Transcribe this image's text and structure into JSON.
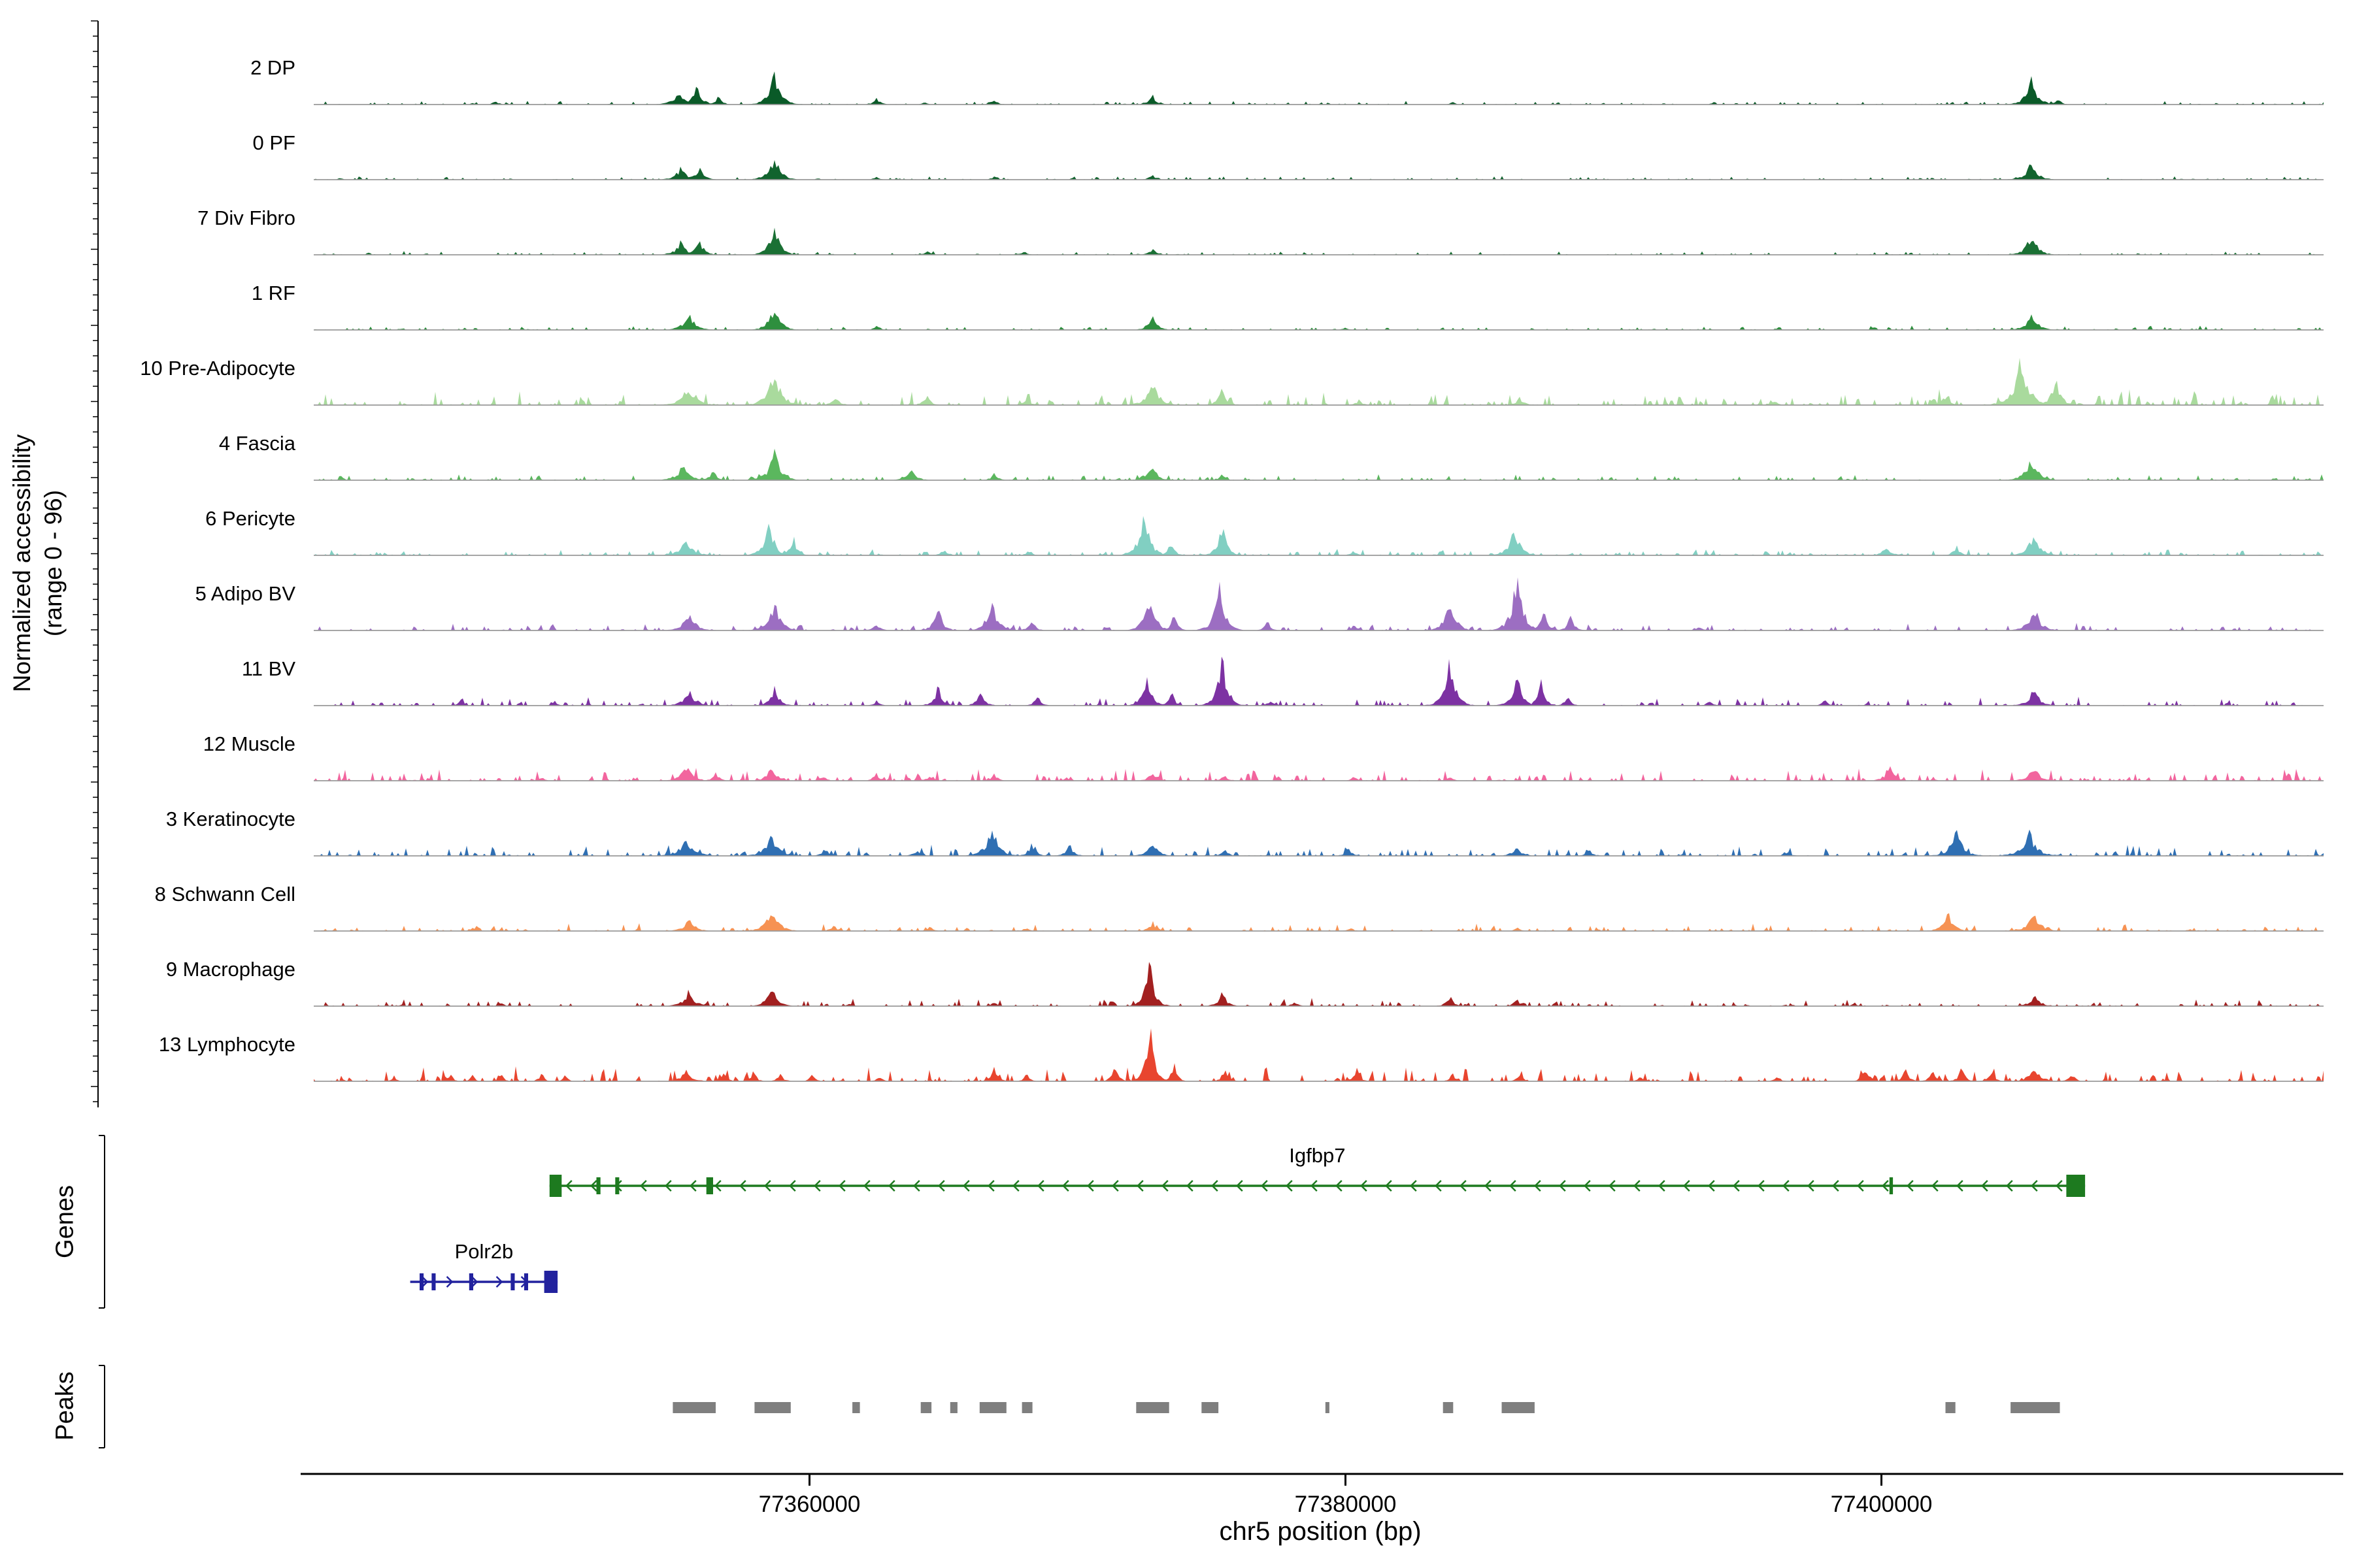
{
  "figure": {
    "y_axis_label_line1": "Normalized accessibility",
    "y_axis_label_line2": "(range 0 - 96)",
    "x_axis_label": "chr5 position (bp)",
    "genes_section_label": "Genes",
    "peaks_section_label": "Peaks"
  },
  "chart_data": {
    "type": "genome-tracks",
    "region": {
      "chrom": "chr5",
      "start": 77341500,
      "end": 77416500
    },
    "x_ticks": [
      77360000,
      77380000,
      77400000
    ],
    "y_range": [
      0,
      96
    ],
    "tracks": [
      {
        "label": "2 DP",
        "color": "#0a5a28",
        "noise": 0.012,
        "peaks": [
          [
            77348300,
            0.07,
            350
          ],
          [
            77355100,
            0.22,
            700
          ],
          [
            77355800,
            0.32,
            600
          ],
          [
            77356600,
            0.16,
            400
          ],
          [
            77358700,
            0.55,
            700
          ],
          [
            77362500,
            0.1,
            500
          ],
          [
            77364300,
            0.05,
            350
          ],
          [
            77366900,
            0.08,
            450
          ],
          [
            77372800,
            0.16,
            500
          ],
          [
            77384000,
            0.05,
            350
          ],
          [
            77405600,
            0.45,
            700
          ],
          [
            77406600,
            0.14,
            350
          ]
        ]
      },
      {
        "label": "0 PF",
        "color": "#11632e",
        "noise": 0.012,
        "peaks": [
          [
            77355200,
            0.2,
            700
          ],
          [
            77355900,
            0.24,
            550
          ],
          [
            77358700,
            0.42,
            700
          ],
          [
            77362500,
            0.06,
            400
          ],
          [
            77366900,
            0.06,
            400
          ],
          [
            77372800,
            0.09,
            450
          ],
          [
            77405600,
            0.32,
            700
          ]
        ]
      },
      {
        "label": "7 Div Fibro",
        "color": "#1a7034",
        "noise": 0.012,
        "peaks": [
          [
            77355200,
            0.22,
            700
          ],
          [
            77355900,
            0.26,
            550
          ],
          [
            77358700,
            0.52,
            650
          ],
          [
            77364400,
            0.07,
            400
          ],
          [
            77368000,
            0.06,
            400
          ],
          [
            77372800,
            0.11,
            450
          ],
          [
            77405600,
            0.36,
            700
          ]
        ]
      },
      {
        "label": "1 RF",
        "color": "#2e8f3e",
        "noise": 0.014,
        "peaks": [
          [
            77355500,
            0.26,
            800
          ],
          [
            77358700,
            0.48,
            650
          ],
          [
            77362500,
            0.07,
            400
          ],
          [
            77372800,
            0.28,
            550
          ],
          [
            77380000,
            0.05,
            350
          ],
          [
            77405600,
            0.3,
            700
          ]
        ]
      },
      {
        "label": "10 Pre-Adipocyte",
        "color": "#a9da9d",
        "noise": 0.05,
        "peaks": [
          [
            77355500,
            0.28,
            900
          ],
          [
            77358700,
            0.62,
            800
          ],
          [
            77361000,
            0.14,
            500
          ],
          [
            77364400,
            0.16,
            450
          ],
          [
            77368100,
            0.13,
            450
          ],
          [
            77372800,
            0.48,
            700
          ],
          [
            77375400,
            0.27,
            550
          ],
          [
            77380500,
            0.1,
            400
          ],
          [
            77386500,
            0.14,
            500
          ],
          [
            77396000,
            0.08,
            400
          ],
          [
            77402400,
            0.16,
            550
          ],
          [
            77405200,
            0.82,
            900
          ],
          [
            77406500,
            0.48,
            600
          ]
        ]
      },
      {
        "label": "4 Fascia",
        "color": "#5bb75e",
        "noise": 0.02,
        "peaks": [
          [
            77355300,
            0.27,
            800
          ],
          [
            77356400,
            0.18,
            450
          ],
          [
            77358700,
            0.52,
            700
          ],
          [
            77363800,
            0.2,
            600
          ],
          [
            77366900,
            0.11,
            450
          ],
          [
            77372800,
            0.26,
            600
          ],
          [
            77375400,
            0.1,
            400
          ],
          [
            77405600,
            0.36,
            800
          ]
        ]
      },
      {
        "label": "6 Pericyte",
        "color": "#81cfc2",
        "noise": 0.02,
        "peaks": [
          [
            77355400,
            0.3,
            800
          ],
          [
            77358500,
            0.56,
            650
          ],
          [
            77359400,
            0.34,
            450
          ],
          [
            77365000,
            0.1,
            450
          ],
          [
            77368200,
            0.09,
            400
          ],
          [
            77372500,
            0.8,
            650
          ],
          [
            77373500,
            0.28,
            400
          ],
          [
            77375400,
            0.54,
            550
          ],
          [
            77380300,
            0.08,
            400
          ],
          [
            77386300,
            0.46,
            700
          ],
          [
            77400200,
            0.18,
            500
          ],
          [
            77402800,
            0.16,
            450
          ],
          [
            77405700,
            0.42,
            700
          ]
        ]
      },
      {
        "label": "5 Adipo BV",
        "color": "#9c6ec2",
        "noise": 0.025,
        "peaks": [
          [
            77355500,
            0.3,
            800
          ],
          [
            77358700,
            0.5,
            700
          ],
          [
            77362500,
            0.12,
            450
          ],
          [
            77364800,
            0.4,
            550
          ],
          [
            77366800,
            0.56,
            650
          ],
          [
            77368300,
            0.18,
            450
          ],
          [
            77372700,
            0.66,
            650
          ],
          [
            77373600,
            0.3,
            400
          ],
          [
            77375300,
            0.8,
            650
          ],
          [
            77377100,
            0.16,
            400
          ],
          [
            77380300,
            0.1,
            400
          ],
          [
            77383900,
            0.56,
            650
          ],
          [
            77386400,
            1.0,
            700
          ],
          [
            77387400,
            0.48,
            450
          ],
          [
            77388400,
            0.26,
            450
          ],
          [
            77393200,
            0.09,
            380
          ],
          [
            77405700,
            0.42,
            700
          ]
        ]
      },
      {
        "label": "11 BV",
        "color": "#7d32a3",
        "noise": 0.03,
        "peaks": [
          [
            77347000,
            0.1,
            350
          ],
          [
            77350500,
            0.07,
            350
          ],
          [
            77355500,
            0.26,
            700
          ],
          [
            77358700,
            0.3,
            600
          ],
          [
            77362500,
            0.09,
            400
          ],
          [
            77364800,
            0.32,
            550
          ],
          [
            77366400,
            0.26,
            500
          ],
          [
            77368500,
            0.16,
            450
          ],
          [
            77372600,
            0.46,
            600
          ],
          [
            77373500,
            0.26,
            400
          ],
          [
            77375400,
            0.9,
            600
          ],
          [
            77377200,
            0.1,
            380
          ],
          [
            77383900,
            0.8,
            650
          ],
          [
            77386400,
            0.56,
            650
          ],
          [
            77387300,
            0.42,
            450
          ],
          [
            77388300,
            0.18,
            400
          ],
          [
            77393600,
            0.1,
            380
          ],
          [
            77397900,
            0.1,
            380
          ],
          [
            77405700,
            0.32,
            650
          ]
        ]
      },
      {
        "label": "12 Muscle",
        "color": "#f2659e",
        "noise": 0.04,
        "peaks": [
          [
            77350000,
            0.07,
            350
          ],
          [
            77355400,
            0.28,
            700
          ],
          [
            77356500,
            0.16,
            400
          ],
          [
            77358600,
            0.26,
            600
          ],
          [
            77360500,
            0.1,
            400
          ],
          [
            77362500,
            0.13,
            450
          ],
          [
            77364500,
            0.1,
            400
          ],
          [
            77366900,
            0.1,
            450
          ],
          [
            77369600,
            0.07,
            380
          ],
          [
            77372800,
            0.15,
            500
          ],
          [
            77375500,
            0.09,
            380
          ],
          [
            77380300,
            0.07,
            380
          ],
          [
            77383900,
            0.08,
            380
          ],
          [
            77400300,
            0.24,
            600
          ],
          [
            77405700,
            0.28,
            650
          ]
        ]
      },
      {
        "label": "3 Keratinocyte",
        "color": "#2f6fb3",
        "noise": 0.035,
        "peaks": [
          [
            77355400,
            0.3,
            900
          ],
          [
            77358600,
            0.36,
            800
          ],
          [
            77360600,
            0.12,
            500
          ],
          [
            77364000,
            0.1,
            450
          ],
          [
            77366800,
            0.52,
            750
          ],
          [
            77368300,
            0.22,
            500
          ],
          [
            77369700,
            0.2,
            500
          ],
          [
            77372800,
            0.24,
            650
          ],
          [
            77375500,
            0.12,
            450
          ],
          [
            77380100,
            0.12,
            500
          ],
          [
            77386400,
            0.16,
            600
          ],
          [
            77389100,
            0.1,
            450
          ],
          [
            77396500,
            0.08,
            400
          ],
          [
            77402800,
            0.44,
            750
          ],
          [
            77405500,
            0.42,
            900
          ]
        ]
      },
      {
        "label": "8 Schwann Cell",
        "color": "#f69253",
        "noise": 0.025,
        "peaks": [
          [
            77355500,
            0.2,
            700
          ],
          [
            77358600,
            0.42,
            750
          ],
          [
            77360900,
            0.1,
            450
          ],
          [
            77364500,
            0.08,
            400
          ],
          [
            77368100,
            0.07,
            400
          ],
          [
            77372800,
            0.16,
            500
          ],
          [
            77380200,
            0.06,
            380
          ],
          [
            77386400,
            0.07,
            380
          ],
          [
            77402500,
            0.3,
            650
          ],
          [
            77405700,
            0.34,
            750
          ]
        ]
      },
      {
        "label": "9 Macrophage",
        "color": "#a22020",
        "noise": 0.025,
        "peaks": [
          [
            77348500,
            0.06,
            350
          ],
          [
            77355500,
            0.26,
            700
          ],
          [
            77358600,
            0.3,
            650
          ],
          [
            77361500,
            0.07,
            380
          ],
          [
            77366900,
            0.08,
            400
          ],
          [
            77372700,
            0.82,
            550
          ],
          [
            77375400,
            0.28,
            500
          ],
          [
            77378100,
            0.09,
            380
          ],
          [
            77383900,
            0.18,
            500
          ],
          [
            77386400,
            0.13,
            450
          ],
          [
            77399000,
            0.06,
            350
          ],
          [
            77405700,
            0.2,
            600
          ]
        ]
      },
      {
        "label": "13 Lymphocyte",
        "color": "#e8452f",
        "noise": 0.05,
        "peaks": [
          [
            77344500,
            0.1,
            300
          ],
          [
            77346600,
            0.14,
            320
          ],
          [
            77347400,
            0.12,
            300
          ],
          [
            77348500,
            0.13,
            320
          ],
          [
            77350000,
            0.16,
            330
          ],
          [
            77350900,
            0.12,
            300
          ],
          [
            77355400,
            0.22,
            600
          ],
          [
            77356800,
            0.16,
            380
          ],
          [
            77357900,
            0.18,
            380
          ],
          [
            77358900,
            0.15,
            380
          ],
          [
            77360100,
            0.12,
            380
          ],
          [
            77362600,
            0.1,
            360
          ],
          [
            77366900,
            0.22,
            450
          ],
          [
            77368100,
            0.13,
            380
          ],
          [
            77371400,
            0.26,
            420
          ],
          [
            77372700,
            1.0,
            500
          ],
          [
            77373600,
            0.32,
            380
          ],
          [
            77375500,
            0.22,
            420
          ],
          [
            77380400,
            0.24,
            420
          ],
          [
            77384000,
            0.14,
            380
          ],
          [
            77386500,
            0.13,
            380
          ],
          [
            77391000,
            0.08,
            340
          ],
          [
            77396100,
            0.12,
            360
          ],
          [
            77399400,
            0.24,
            430
          ],
          [
            77400900,
            0.22,
            420
          ],
          [
            77401900,
            0.18,
            400
          ],
          [
            77403000,
            0.24,
            430
          ],
          [
            77404100,
            0.18,
            400
          ],
          [
            77405700,
            0.32,
            600
          ],
          [
            77407100,
            0.16,
            380
          ]
        ]
      }
    ],
    "genes": [
      {
        "name": "Igfbp7",
        "strand": "-",
        "color": "#1d7a1f",
        "start": 77350300,
        "end": 77407600,
        "exons": [
          [
            77350300,
            77350750
          ],
          [
            77352050,
            77352200
          ],
          [
            77352750,
            77352900
          ],
          [
            77356150,
            77356400
          ],
          [
            77400300,
            77400430
          ],
          [
            77406900,
            77407600
          ]
        ]
      },
      {
        "name": "Polr2b",
        "strand": "+",
        "color": "#22229e",
        "start": 77345100,
        "end": 77350600,
        "exons": [
          [
            77345450,
            77345600
          ],
          [
            77345900,
            77346050
          ],
          [
            77347300,
            77347450
          ],
          [
            77348850,
            77349000
          ],
          [
            77349350,
            77349500
          ],
          [
            77350100,
            77350600
          ]
        ]
      }
    ],
    "peak_regions": [
      [
        77354900,
        77356500
      ],
      [
        77357950,
        77359300
      ],
      [
        77361600,
        77361880
      ],
      [
        77364150,
        77364550
      ],
      [
        77365250,
        77365520
      ],
      [
        77366350,
        77367350
      ],
      [
        77367930,
        77368320
      ],
      [
        77372190,
        77373420
      ],
      [
        77374630,
        77375260
      ],
      [
        77379250,
        77379400
      ],
      [
        77383640,
        77384020
      ],
      [
        77385830,
        77387060
      ],
      [
        77402390,
        77402760
      ],
      [
        77404820,
        77406660
      ]
    ]
  }
}
